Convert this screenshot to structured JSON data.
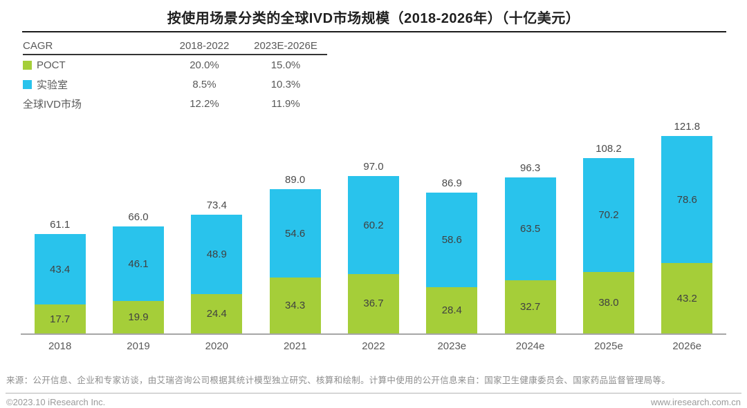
{
  "title": "按使用场景分类的全球IVD市场规模（2018-2026年）（十亿美元）",
  "colors": {
    "poct": "#a5ce39",
    "lab": "#29c3ec",
    "bar_label_text": "#404040",
    "axis_line": "#a6a6a6"
  },
  "cagr_table": {
    "header": {
      "col1": "CAGR",
      "col2": "2018-2022",
      "col3": "2023E-2026E"
    },
    "rows": [
      {
        "label": "POCT",
        "swatch": "#a5ce39",
        "v1": "20.0%",
        "v2": "15.0%"
      },
      {
        "label": "实验室",
        "swatch": "#29c3ec",
        "v1": "8.5%",
        "v2": "10.3%"
      },
      {
        "label": "全球IVD市场",
        "swatch": null,
        "v1": "12.2%",
        "v2": "11.9%"
      }
    ]
  },
  "chart_data": {
    "type": "bar",
    "stacked": true,
    "title": "按使用场景分类的全球IVD市场规模（2018-2026年）（十亿美元）",
    "unit": "十亿美元",
    "categories": [
      "2018",
      "2019",
      "2020",
      "2021",
      "2022",
      "2023e",
      "2024e",
      "2025e",
      "2026e"
    ],
    "series": [
      {
        "name": "POCT",
        "color": "#a5ce39",
        "values": [
          17.7,
          19.9,
          24.4,
          34.3,
          36.7,
          28.4,
          32.7,
          38.0,
          43.2
        ]
      },
      {
        "name": "实验室",
        "color": "#29c3ec",
        "values": [
          43.4,
          46.1,
          48.9,
          54.6,
          60.2,
          58.6,
          63.5,
          70.2,
          78.6
        ]
      }
    ],
    "totals": [
      61.1,
      66.0,
      73.4,
      89.0,
      97.0,
      86.9,
      96.3,
      108.2,
      121.8
    ],
    "ylim": [
      0,
      130
    ],
    "grid": false,
    "legend_position": "top-left-table",
    "xlabel": "",
    "ylabel": ""
  },
  "footer": {
    "source": "来源：公开信息、企业和专家访谈，由艾瑞咨询公司根据其统计模型独立研究、核算和绘制。计算中使用的公开信息来自：国家卫生健康委员会、国家药品监督管理局等。",
    "copyright": "©2023.10 iResearch Inc.",
    "website": "www.iresearch.com.cn"
  }
}
